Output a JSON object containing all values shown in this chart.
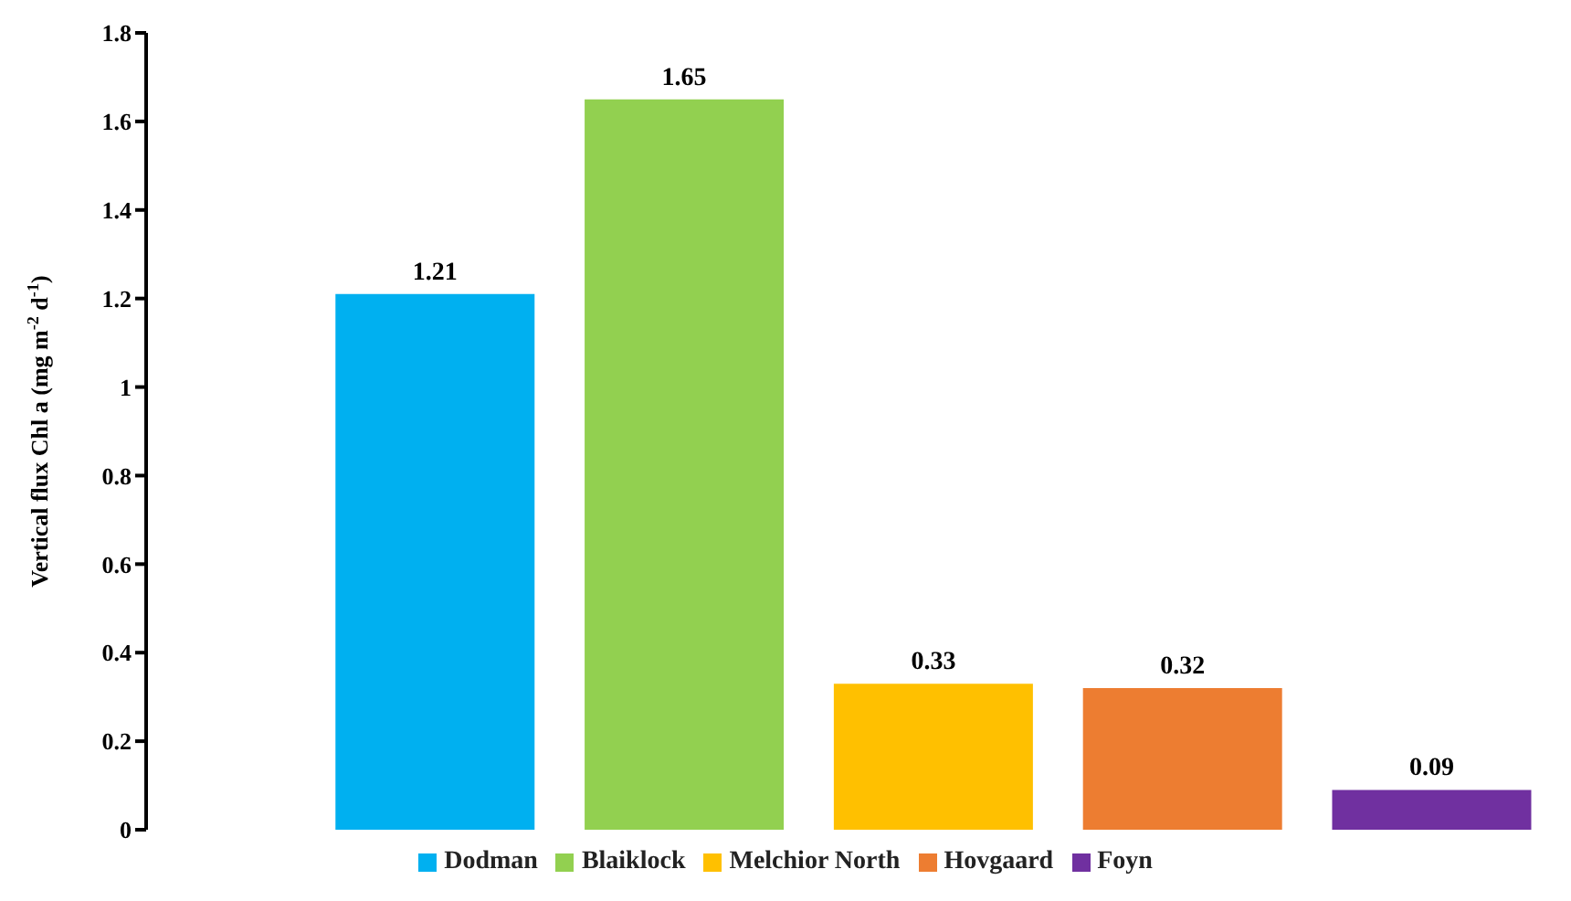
{
  "chart_data": {
    "type": "bar",
    "ylabel": "Vertical flux Chl a (mg m$^{-2}$ d$^{-1}$)",
    "categories": [
      null,
      null,
      null,
      null,
      null
    ],
    "stacked": true,
    "series": [
      {
        "name": "Dodman",
        "color": "#00b0f0",
        "values": [
          1.21,
          null,
          null,
          null,
          null
        ]
      },
      {
        "name": "Blaiklock",
        "color": "#92d050",
        "values": [
          null,
          1.65,
          null,
          null,
          null
        ]
      },
      {
        "name": "Melchior North",
        "color": "#ffc000",
        "values": [
          null,
          null,
          0.33,
          null,
          null
        ]
      },
      {
        "name": "Hovgaard",
        "color": "#ed7d31",
        "values": [
          null,
          null,
          null,
          0.32,
          null
        ]
      },
      {
        "name": "Foyn",
        "color": "#7030a0",
        "values": [
          null,
          null,
          null,
          null,
          0.09
        ]
      }
    ],
    "ylim": [
      0,
      1.8
    ],
    "yticks": [
      0,
      0.2,
      0.4,
      0.6,
      0.8,
      1,
      1.2,
      1.4,
      1.6,
      1.8
    ],
    "grid": false,
    "legend": "bottom",
    "data_labels": true
  }
}
